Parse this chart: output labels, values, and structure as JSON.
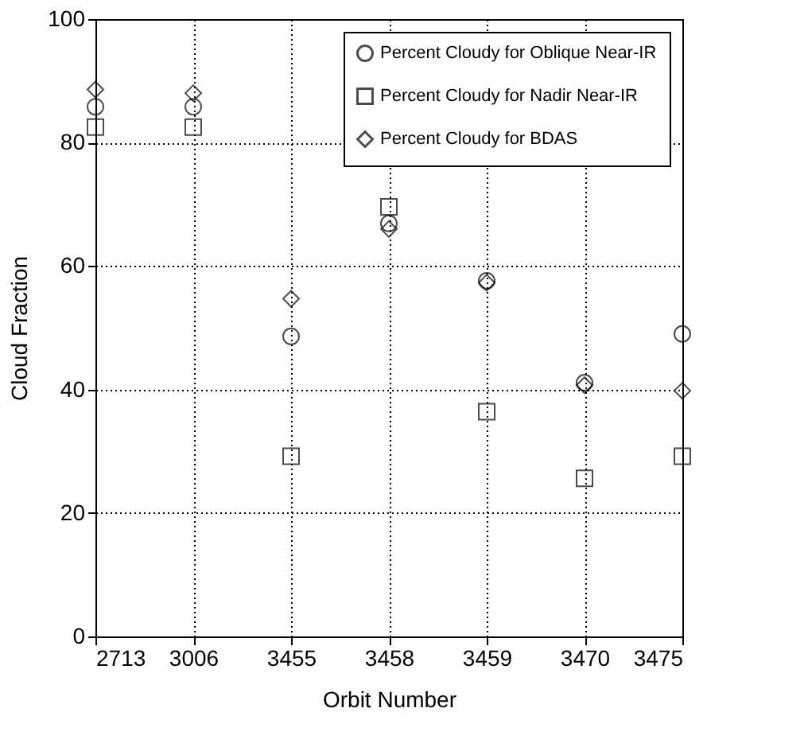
{
  "chart_data": {
    "type": "scatter",
    "xlabel": "Orbit Number",
    "ylabel": "Cloud Fraction",
    "categories": [
      "2713",
      "3006",
      "3455",
      "3458",
      "3459",
      "3470",
      "3475"
    ],
    "series": [
      {
        "name": "Percent Cloudy for Oblique Near-IR",
        "color": "#000000",
        "marker": "circle",
        "values": [
          85.8,
          85.8,
          48.6,
          66.9,
          57.6,
          41.1,
          49.0
        ]
      },
      {
        "name": "Percent Cloudy for Nadir Near-IR",
        "color": "#000000",
        "marker": "square",
        "values": [
          82.5,
          82.5,
          29.2,
          69.6,
          36.4,
          25.6,
          29.2
        ]
      },
      {
        "name": "Percent Cloudy for BDAS",
        "color": "#000000",
        "marker": "diamond",
        "values": [
          88.6,
          88.0,
          54.7,
          66.0,
          57.3,
          40.7,
          39.8
        ]
      }
    ],
    "ylim": [
      0,
      100
    ],
    "yticks": [
      0,
      20,
      40,
      60,
      80,
      100
    ],
    "grid": true,
    "legend": "top right"
  }
}
